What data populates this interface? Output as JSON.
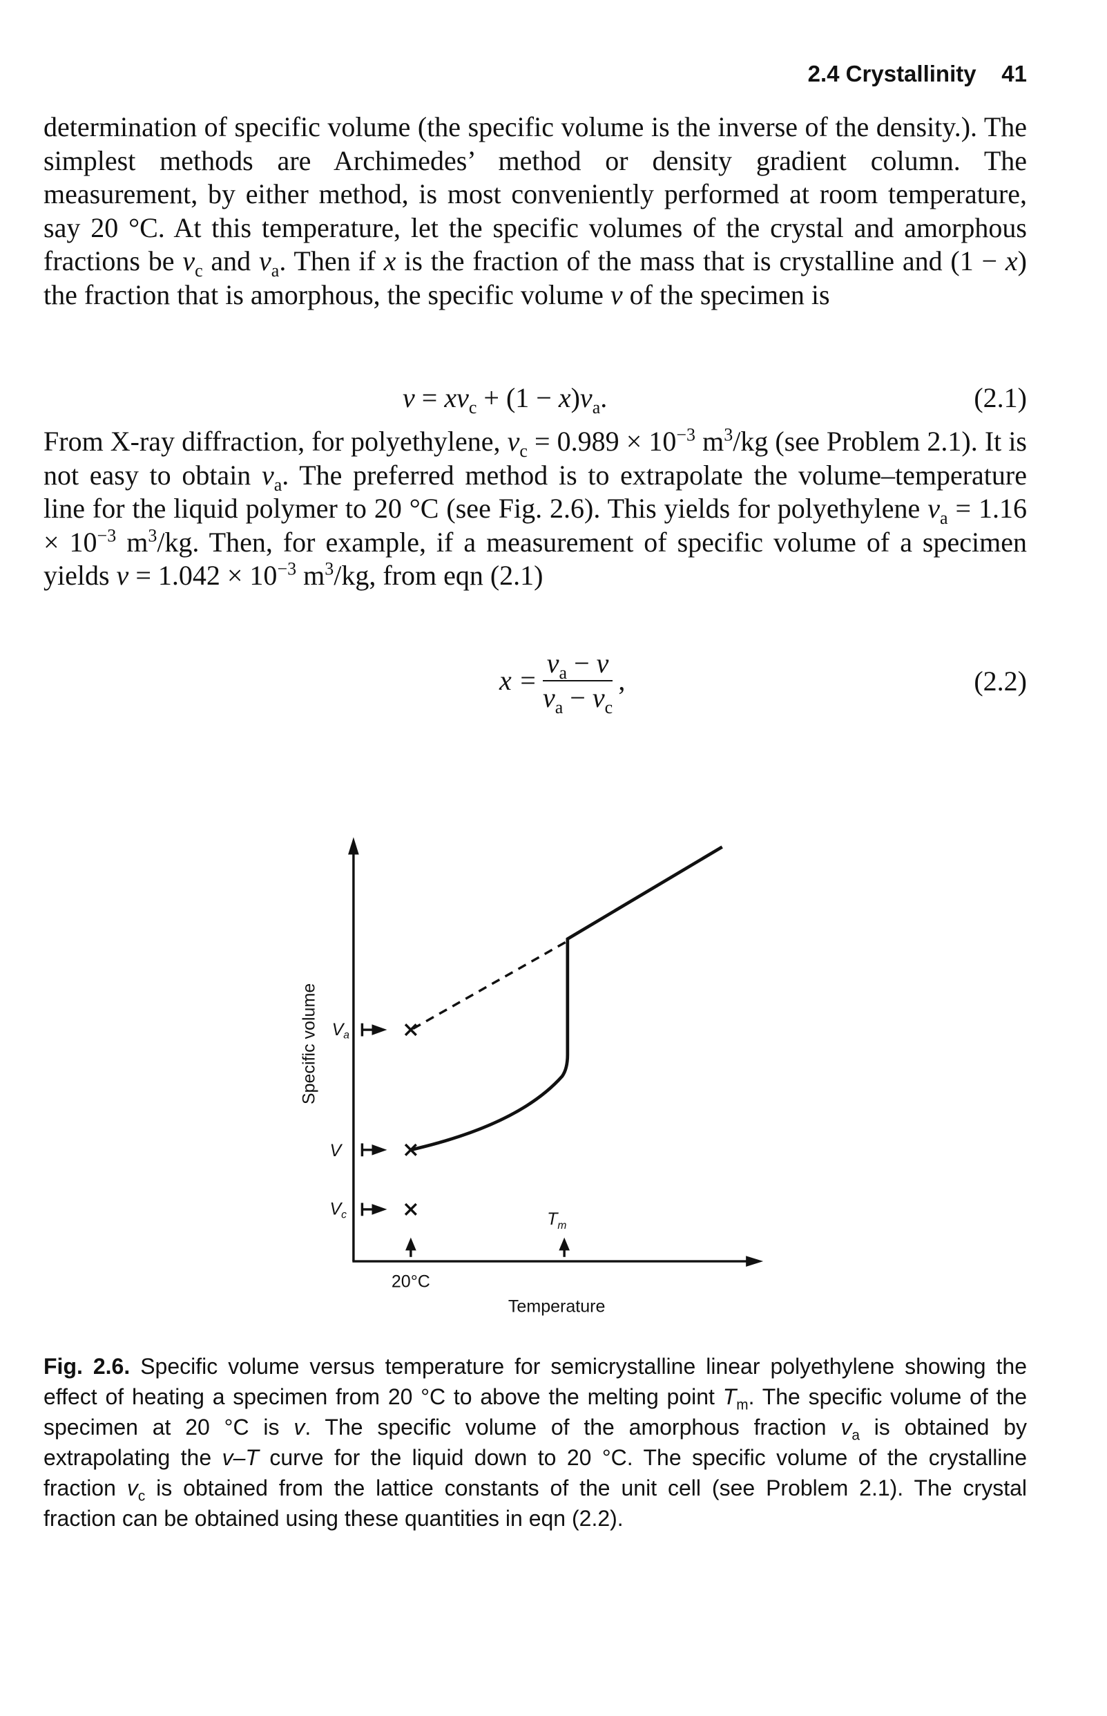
{
  "header": {
    "section": "2.4 Crystallinity",
    "page": "41"
  },
  "paragraph_1": [
    "determination of specific volume (the specific volume is the inverse of the density.). The simplest methods are Archimedes’ method or density gradient column. The measurement, by either method, is most conveniently performed at room temperature, say 20 °C. At this temperature, let the specific volumes of the crystal and amorphous fractions be ",
    "v",
    "c",
    " and ",
    "v",
    "a",
    ". Then if ",
    "x",
    " is the fraction of the mass that is crystalline and (1 − ",
    "x",
    ") the fraction that is amorphous, the specific volume ",
    "v",
    " of the specimen is"
  ],
  "equation_1": {
    "parts": [
      "v",
      " = ",
      "xv",
      "c",
      " + (1 − ",
      "x",
      ")",
      "v",
      "a",
      "."
    ],
    "number": "(2.1)"
  },
  "paragraph_2": [
    "From X-ray diffraction, for polyethylene, ",
    "v",
    "c",
    " = 0.989 × 10",
    "−3",
    " m",
    "3",
    "/kg (see Problem 2.1). It is not easy to obtain ",
    "v",
    "a",
    ". The preferred method is to extrapolate the volume–temperature line for the liquid polymer to 20 °C (see Fig. 2.6). This yields for polyethylene ",
    "v",
    "a",
    " = 1.16 × 10",
    "−3",
    " m",
    "3",
    "/kg. Then, for example, if a measurement of specific volume of a specimen yields ",
    "v",
    " = 1.042 × 10",
    "−3",
    " m",
    "3",
    "/kg, from eqn (2.1)"
  ],
  "equation_2": {
    "lhs": "x =",
    "numerator": [
      "v",
      "a",
      " − ",
      "v"
    ],
    "denominator": [
      "v",
      "a",
      " − ",
      "v",
      "c"
    ],
    "trail": ",",
    "number": "(2.2)"
  },
  "figure": {
    "y_label": "Specific volume",
    "va": [
      "V",
      "a"
    ],
    "v": "V",
    "vc": [
      "V",
      "c"
    ],
    "tm": [
      "T",
      "m"
    ],
    "x_mark": "20°C",
    "x_label": "Temperature"
  },
  "caption": [
    "Fig. 2.6.",
    " Specific volume versus temperature for semicrystalline linear polyethylene showing the effect of heating a specimen from 20 °C to above the melting point ",
    "T",
    "m",
    ". The specific volume of the specimen at 20 °C is ",
    "v",
    ". The specific volume of the amorphous fraction ",
    "v",
    "a",
    " is obtained by extrapolating the ",
    "v–T",
    " curve for the liquid down to 20 °C. The specific volume of the crystalline fraction ",
    "v",
    "c",
    " is obtained from the lattice constants of the unit cell (see Problem 2.1). The crystal fraction can be obtained using these quantities in eqn (2.2)."
  ]
}
